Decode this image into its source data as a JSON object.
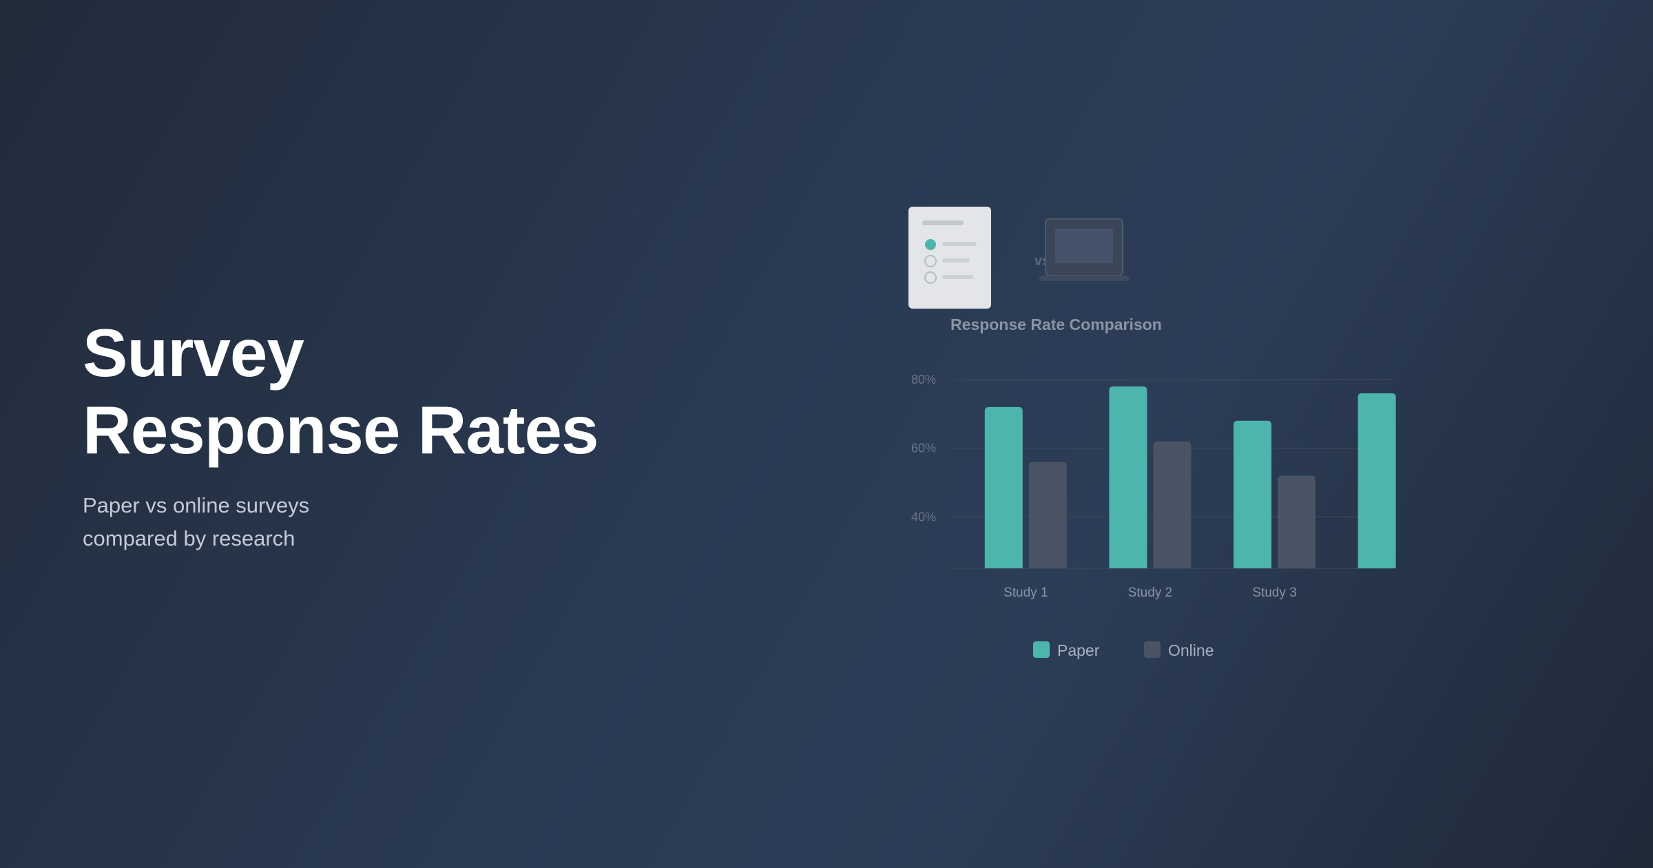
{
  "header": {
    "title_lines": [
      "Survey",
      "Response Rates"
    ],
    "subtitle_lines": [
      "Paper vs online surveys",
      "compared by research"
    ]
  },
  "comparison_label": "vs",
  "chart_data": {
    "type": "bar",
    "title": "Response Rate Comparison",
    "categories": [
      "Study 1",
      "Study 2",
      "Study 3",
      null
    ],
    "series": [
      {
        "name": "Paper",
        "color": "#4db6ac",
        "values": [
          72,
          78,
          68,
          76
        ]
      },
      {
        "name": "Online",
        "color": "#4a5363",
        "values": [
          56,
          62,
          52,
          null
        ]
      }
    ],
    "ylim": [
      25,
      80
    ],
    "yticks": [
      {
        "value": 40,
        "label": "40%"
      },
      {
        "value": 60,
        "label": "60%"
      },
      {
        "value": 80,
        "label": "80%"
      }
    ],
    "grid": true
  }
}
